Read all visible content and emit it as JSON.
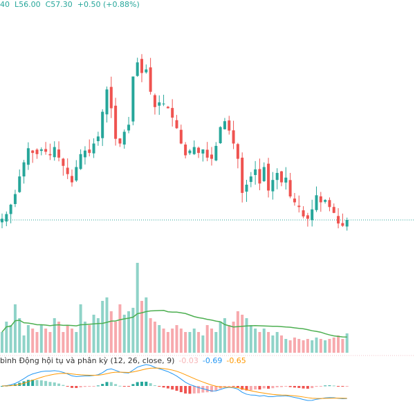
{
  "legend": {
    "h_tail": "40",
    "low": "L56.00",
    "close": "C57.30",
    "change": "+0.50 (+0.88%)"
  },
  "macd_legend": {
    "title": "bình Động hội tụ và phân kỳ (12, 26, close, 9)",
    "hist": "-0.03",
    "macd": "-0.69",
    "signal": "-0.65"
  },
  "colors": {
    "up": "#26a69a",
    "down": "#ef5350",
    "vol_up": "#8fd3c8",
    "vol_down": "#f7a9ad",
    "vol_ma": "#4caf50",
    "macd": "#2196f3",
    "signal": "#ff9800"
  },
  "chart_data": {
    "type": "candlestick",
    "last_price": 57.3,
    "close": [
      57.4,
      57.8,
      58.6,
      59.5,
      61.0,
      62.2,
      63.4,
      63.0,
      62.9,
      63.3,
      63.1,
      62.8,
      63.5,
      62.6,
      61.9,
      61.2,
      60.5,
      61.8,
      62.9,
      63.2,
      63.0,
      63.8,
      64.4,
      66.5,
      68.4,
      66.8,
      64.2,
      63.8,
      64.8,
      65.4,
      69.5,
      70.7,
      69.8,
      70.1,
      68.2,
      66.9,
      67.3,
      67.2,
      66.8,
      66.0,
      65.1,
      63.8,
      62.8,
      63.2,
      63.5,
      63.0,
      63.3,
      62.6,
      62.5,
      63.6,
      65.2,
      65.7,
      64.9,
      63.8,
      62.5,
      59.6,
      60.3,
      61.0,
      61.6,
      60.4,
      61.8,
      59.8,
      60.7,
      61.3,
      60.5,
      60.9,
      59.3,
      58.8,
      58.4,
      57.6,
      57.4,
      58.2,
      59.4,
      58.8,
      59.0,
      58.4,
      57.9,
      57.0,
      56.8,
      57.3
    ],
    "volume": [
      30,
      45,
      40,
      70,
      50,
      25,
      40,
      35,
      30,
      40,
      35,
      30,
      50,
      45,
      30,
      40,
      35,
      30,
      70,
      45,
      40,
      55,
      50,
      75,
      80,
      60,
      45,
      70,
      55,
      60,
      65,
      130,
      75,
      80,
      50,
      45,
      40,
      35,
      30,
      35,
      40,
      35,
      30,
      30,
      35,
      30,
      25,
      40,
      35,
      30,
      45,
      50,
      40,
      45,
      60,
      55,
      50,
      40,
      35,
      30,
      35,
      30,
      25,
      30,
      25,
      20,
      18,
      22,
      20,
      18,
      20,
      18,
      22,
      20,
      18,
      20,
      22,
      25,
      20,
      28
    ]
  }
}
